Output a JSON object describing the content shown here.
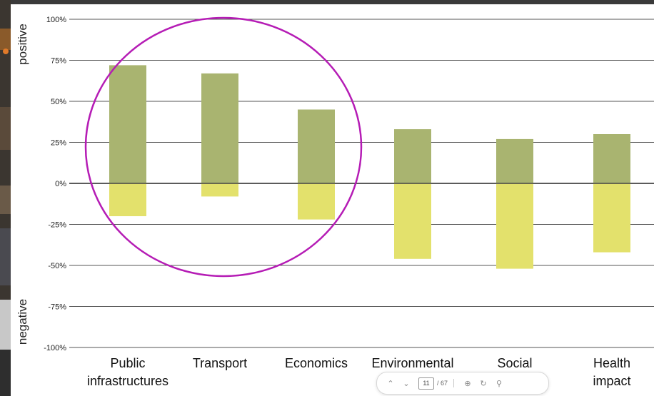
{
  "chart_data": {
    "type": "bar",
    "title": "",
    "xlabel": "",
    "ylabel_positive": "positive",
    "ylabel_negative": "negative",
    "ylim": [
      -100,
      100
    ],
    "ytick_values": [
      100,
      75,
      50,
      25,
      0,
      -25,
      -50,
      -75,
      -100
    ],
    "ytick_labels": [
      "100%",
      "75%",
      "50%",
      "25%",
      "0%",
      "-25%",
      "-50%",
      "-75%",
      "-100%"
    ],
    "categories": [
      [
        "Public",
        "infrastructures"
      ],
      [
        "Transport"
      ],
      [
        "Economics"
      ],
      [
        "Environmental"
      ],
      [
        "Social"
      ],
      [
        "Health",
        "impact"
      ]
    ],
    "series": [
      {
        "values": [
          72,
          67,
          45,
          33,
          27,
          30
        ],
        "color": "#a9b470"
      },
      {
        "values": [
          -20,
          -8,
          -22,
          -46,
          -52,
          -42
        ],
        "color": "#e3e16c"
      }
    ],
    "grid": true,
    "annotation": {
      "shape": "ellipse",
      "color": "#b51cb5",
      "highlighted_categories": [
        0,
        1,
        2
      ]
    }
  },
  "pager": {
    "current_page": "11",
    "total_pages": "/ 67",
    "up_icon": "chevron-up-icon",
    "down_icon": "chevron-down-icon",
    "zoom_in_icon": "zoom-in-icon",
    "rotate_icon": "rotate-icon",
    "search_icon": "search-icon"
  }
}
